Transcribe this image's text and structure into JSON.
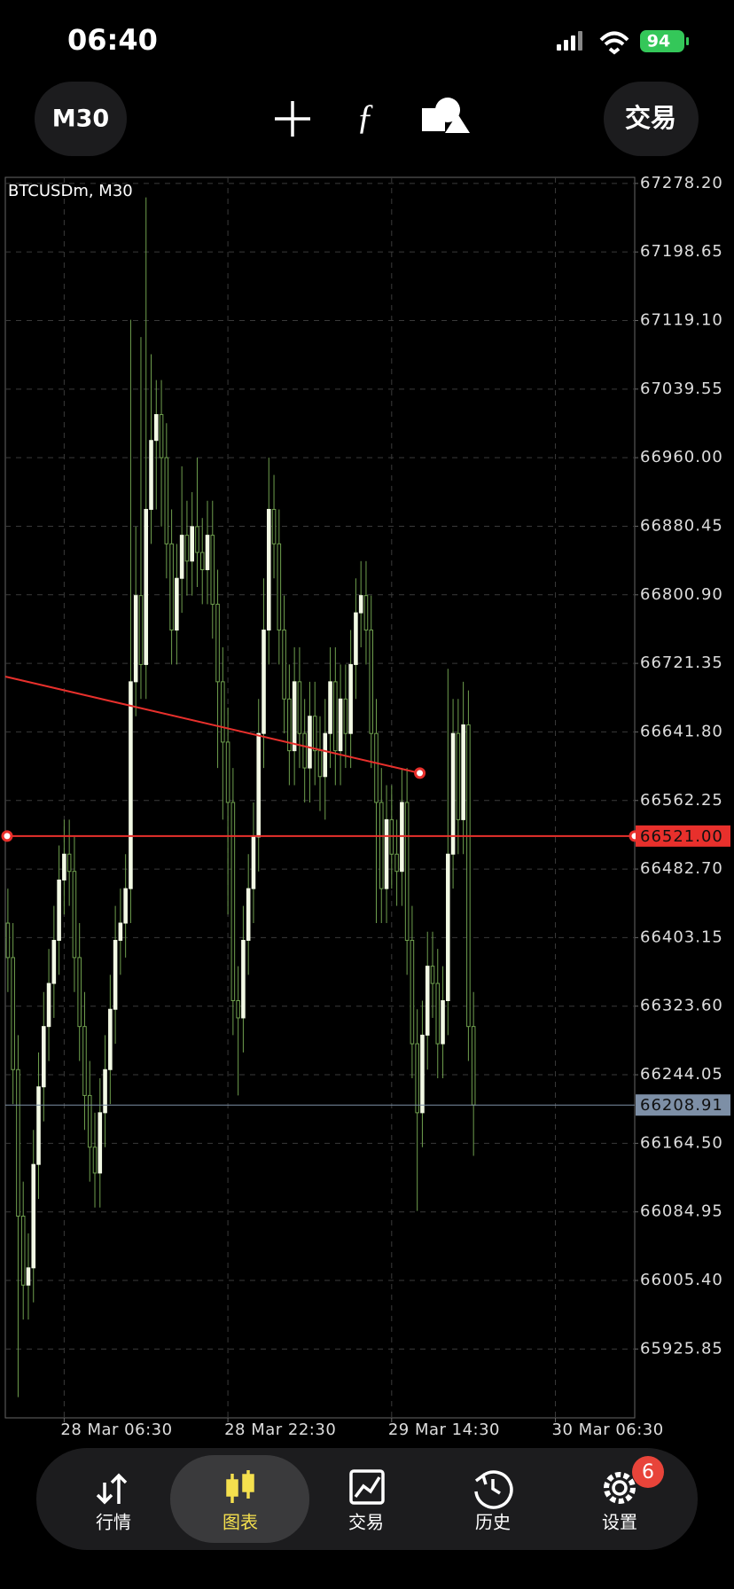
{
  "status": {
    "time": "06:40",
    "battery": "94"
  },
  "toolbar": {
    "timeframe": "M30",
    "trade": "交易"
  },
  "chart_data": {
    "type": "candlestick",
    "title": "BTCUSDm, M30",
    "open": [
      66420,
      66380,
      66250,
      66080,
      66000,
      66020,
      66140,
      66230,
      66300,
      66350,
      66400,
      66470,
      66500,
      66480,
      66380,
      66300,
      66220,
      66160,
      66130,
      66200,
      66250,
      66320,
      66400,
      66420,
      66460,
      66700,
      66800,
      66720,
      66900,
      66980,
      67010,
      66960,
      66860,
      66760,
      66820,
      66870,
      66840,
      66880,
      66850,
      66830,
      66870,
      66790,
      66700,
      66630,
      66560,
      66330,
      66310,
      66400,
      66460,
      66520,
      66640,
      66760,
      66900,
      66860,
      66760,
      66680,
      66620,
      66700,
      66640,
      66600,
      66660,
      66620,
      66590,
      66640,
      66700,
      66620,
      66680,
      66640,
      66720,
      66780,
      66800,
      66760,
      66640,
      66560,
      66460,
      66540,
      66500,
      66480,
      66560,
      66400,
      66280,
      66200,
      66290,
      66370,
      66350,
      66280,
      66330,
      66500,
      66640,
      66540,
      66650,
      66300
    ],
    "high": [
      66460,
      66420,
      66290,
      66120,
      66060,
      66180,
      66270,
      66340,
      66390,
      66440,
      66510,
      66540,
      66540,
      66520,
      66420,
      66340,
      66260,
      66200,
      66240,
      66290,
      66360,
      66440,
      66460,
      66500,
      67120,
      66880,
      67100,
      67262,
      67080,
      67050,
      67050,
      67000,
      66900,
      66860,
      66950,
      66910,
      66920,
      66960,
      66890,
      66910,
      66910,
      66830,
      66740,
      66670,
      66600,
      66370,
      66440,
      66500,
      66560,
      66680,
      66820,
      66960,
      66940,
      66900,
      66800,
      66720,
      66740,
      66740,
      66680,
      66700,
      66700,
      66660,
      66680,
      66740,
      66740,
      66720,
      66720,
      66760,
      66820,
      66840,
      66840,
      66800,
      66680,
      66600,
      66580,
      66580,
      66540,
      66600,
      66600,
      66440,
      66320,
      66330,
      66410,
      66410,
      66390,
      66370,
      66715,
      66680,
      66680,
      66700,
      66690,
      66340
    ],
    "low": [
      66340,
      66210,
      65870,
      65960,
      65960,
      65980,
      66100,
      66190,
      66260,
      66310,
      66360,
      66430,
      66440,
      66340,
      66260,
      66180,
      66120,
      66090,
      66090,
      66160,
      66210,
      66280,
      66360,
      66380,
      66420,
      66660,
      66680,
      66680,
      66860,
      66900,
      66880,
      66820,
      66720,
      66720,
      66780,
      66800,
      66800,
      66810,
      66790,
      66790,
      66750,
      66600,
      66540,
      66430,
      66290,
      66220,
      66270,
      66360,
      66420,
      66480,
      66600,
      66720,
      66820,
      66720,
      66640,
      66580,
      66580,
      66600,
      66560,
      66560,
      66580,
      66550,
      66540,
      66600,
      66580,
      66580,
      66600,
      66600,
      66680,
      66740,
      66720,
      66600,
      66420,
      66420,
      66420,
      66460,
      66440,
      66440,
      66360,
      66240,
      66086,
      66160,
      66250,
      66310,
      66240,
      66240,
      66290,
      66460,
      66500,
      66500,
      66260,
      66150
    ],
    "close": [
      66380,
      66250,
      66080,
      66000,
      66020,
      66140,
      66230,
      66300,
      66350,
      66400,
      66470,
      66500,
      66480,
      66380,
      66300,
      66220,
      66160,
      66130,
      66200,
      66250,
      66320,
      66400,
      66420,
      66460,
      66700,
      66800,
      66720,
      66900,
      66980,
      67010,
      66960,
      66860,
      66760,
      66820,
      66870,
      66840,
      66880,
      66850,
      66830,
      66870,
      66790,
      66700,
      66630,
      66560,
      66330,
      66310,
      66400,
      66460,
      66520,
      66640,
      66760,
      66900,
      66860,
      66760,
      66680,
      66620,
      66700,
      66640,
      66600,
      66660,
      66620,
      66590,
      66640,
      66700,
      66620,
      66680,
      66640,
      66720,
      66780,
      66800,
      66760,
      66640,
      66560,
      66460,
      66540,
      66500,
      66480,
      66560,
      66400,
      66280,
      66200,
      66290,
      66370,
      66350,
      66280,
      66330,
      66500,
      66640,
      66540,
      66650,
      66300,
      66208.91
    ],
    "up_color": "#f2f9e4",
    "down_color": "#000000",
    "wick_color": "#6f9f4e",
    "ylim": [
      65845.95,
      67285.25
    ],
    "yticks": [
      {
        "value": 67278.2,
        "label": "67278.20"
      },
      67198.65,
      {
        "value": 67119.1,
        "label": "67119.10"
      },
      67039.55,
      {
        "value": 66960,
        "label": "66960.00"
      },
      66880.45,
      {
        "value": 66800.9,
        "label": "66800.90"
      },
      66721.35,
      {
        "value": 66641.8,
        "label": "66641.80"
      },
      66562.25,
      {
        "value": 66482.7,
        "label": "66482.70"
      },
      66403.15,
      {
        "value": 66323.6,
        "label": "66323.60"
      },
      66244.05,
      {
        "value": 66164.5,
        "label": "66164.50"
      },
      66084.95,
      {
        "value": 66005.4,
        "label": "66005.40"
      },
      65925.85
    ],
    "xlim": [
      -0.5,
      122.5
    ],
    "xticks": [
      {
        "value": 11,
        "label": "28 Mar 06:30"
      },
      {
        "value": 43,
        "label": "28 Mar 22:30"
      },
      {
        "value": 75,
        "label": "29 Mar 14:30"
      },
      {
        "value": 107,
        "label": "30 Mar 06:30"
      }
    ],
    "grid": true,
    "price_lines": [
      {
        "value": 66521,
        "label": "66521.00",
        "color": "#e8302c"
      },
      {
        "value": 66208.91,
        "label": "66208.91",
        "color": "#7d8fa6"
      }
    ],
    "trendline": {
      "color": "#e8302c",
      "x": [
        -0.5,
        80.5
      ],
      "values": [
        66706,
        66594
      ]
    }
  },
  "nav": {
    "items": [
      "行情",
      "图表",
      "交易",
      "历史",
      "设置"
    ],
    "active": 1,
    "badge": "6"
  }
}
